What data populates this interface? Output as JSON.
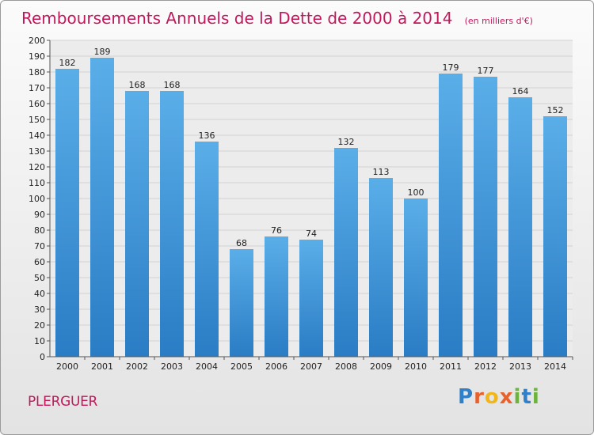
{
  "chart_data": {
    "type": "bar",
    "title": "Remboursements Annuels de la Dette de 2000 à 2014",
    "unit_note": "(en milliers d'€)",
    "categories": [
      "2000",
      "2001",
      "2002",
      "2003",
      "2004",
      "2005",
      "2006",
      "2007",
      "2008",
      "2009",
      "2010",
      "2011",
      "2012",
      "2013",
      "2014"
    ],
    "values": [
      182,
      189,
      168,
      168,
      136,
      68,
      76,
      74,
      132,
      113,
      100,
      179,
      177,
      164,
      152
    ],
    "ylim": [
      0,
      200
    ],
    "ytick_step": 10,
    "xlabel": "",
    "ylabel": "",
    "grid": true,
    "bar_color_top": "#5aaee8",
    "bar_color_bottom": "#2a7cc4"
  },
  "footer": {
    "commune": "PLERGUER",
    "brand_letters": [
      "P",
      "r",
      "o",
      "x",
      "i",
      "t",
      "i"
    ],
    "brand_colors": [
      "#2f7fc9",
      "#e8612c",
      "#f2b619",
      "#e8612c",
      "#6bb33a",
      "#2f7fc9",
      "#6bb33a"
    ]
  }
}
